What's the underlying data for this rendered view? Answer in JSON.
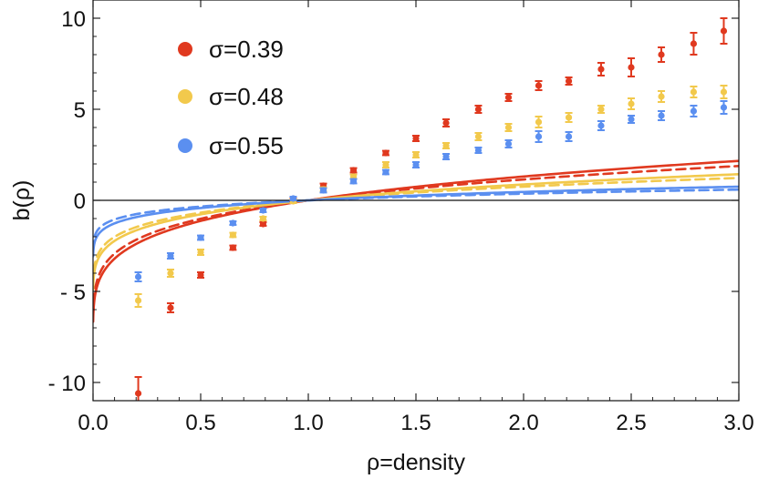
{
  "chart_data": {
    "type": "line",
    "title": "",
    "xlabel": "ρ=density",
    "ylabel": "b(ρ)",
    "xlim": [
      0.0,
      3.0
    ],
    "ylim": [
      -11,
      11
    ],
    "xticks": [
      0.0,
      0.5,
      1.0,
      1.5,
      2.0,
      2.5,
      3.0
    ],
    "xtick_labels": [
      "0.0",
      "0.5",
      "1.0",
      "1.5",
      "2.0",
      "2.5",
      "3.0"
    ],
    "yticks": [
      -10,
      -5,
      0,
      5,
      10
    ],
    "ytick_labels": [
      "- 10",
      "- 5",
      "0",
      "5",
      "10"
    ],
    "legend_position": "top-left",
    "series": [
      {
        "name": "σ=0.39",
        "color": "#e0391f",
        "points": [
          {
            "x": 0.21,
            "y": -10.6,
            "err": 0.9
          },
          {
            "x": 0.36,
            "y": -5.9,
            "err": 0.25
          },
          {
            "x": 0.5,
            "y": -4.1,
            "err": 0.15
          },
          {
            "x": 0.65,
            "y": -2.6,
            "err": 0.12
          },
          {
            "x": 0.79,
            "y": -1.3,
            "err": 0.1
          },
          {
            "x": 0.93,
            "y": 0.0,
            "err": 0.1
          },
          {
            "x": 1.07,
            "y": 0.8,
            "err": 0.12
          },
          {
            "x": 1.21,
            "y": 1.65,
            "err": 0.12
          },
          {
            "x": 1.36,
            "y": 2.6,
            "err": 0.12
          },
          {
            "x": 1.5,
            "y": 3.4,
            "err": 0.15
          },
          {
            "x": 1.64,
            "y": 4.25,
            "err": 0.2
          },
          {
            "x": 1.79,
            "y": 5.0,
            "err": 0.2
          },
          {
            "x": 1.93,
            "y": 5.65,
            "err": 0.2
          },
          {
            "x": 2.07,
            "y": 6.3,
            "err": 0.25
          },
          {
            "x": 2.21,
            "y": 6.55,
            "err": 0.2
          },
          {
            "x": 2.36,
            "y": 7.2,
            "err": 0.35
          },
          {
            "x": 2.5,
            "y": 7.3,
            "err": 0.5
          },
          {
            "x": 2.64,
            "y": 8.0,
            "err": 0.4
          },
          {
            "x": 2.79,
            "y": 8.6,
            "err": 0.6
          },
          {
            "x": 2.93,
            "y": 9.3,
            "err": 0.7
          }
        ],
        "solid_fit": {
          "a": 8.35,
          "b": -8.35,
          "p": 0.21
        },
        "dashed_fit": {
          "a": 8.62,
          "b": -8.62,
          "p": 0.18
        }
      },
      {
        "name": "σ=0.48",
        "color": "#f2c94c",
        "points": [
          {
            "x": 0.21,
            "y": -5.5,
            "err": 0.35
          },
          {
            "x": 0.36,
            "y": -4.0,
            "err": 0.2
          },
          {
            "x": 0.5,
            "y": -2.85,
            "err": 0.15
          },
          {
            "x": 0.65,
            "y": -1.9,
            "err": 0.12
          },
          {
            "x": 0.79,
            "y": -1.0,
            "err": 0.1
          },
          {
            "x": 0.93,
            "y": -0.05,
            "err": 0.1
          },
          {
            "x": 1.07,
            "y": 0.6,
            "err": 0.12
          },
          {
            "x": 1.21,
            "y": 1.3,
            "err": 0.12
          },
          {
            "x": 1.36,
            "y": 1.95,
            "err": 0.15
          },
          {
            "x": 1.5,
            "y": 2.5,
            "err": 0.15
          },
          {
            "x": 1.64,
            "y": 3.0,
            "err": 0.15
          },
          {
            "x": 1.79,
            "y": 3.5,
            "err": 0.2
          },
          {
            "x": 1.93,
            "y": 4.0,
            "err": 0.2
          },
          {
            "x": 2.07,
            "y": 4.3,
            "err": 0.3
          },
          {
            "x": 2.21,
            "y": 4.55,
            "err": 0.25
          },
          {
            "x": 2.36,
            "y": 5.0,
            "err": 0.2
          },
          {
            "x": 2.5,
            "y": 5.3,
            "err": 0.3
          },
          {
            "x": 2.64,
            "y": 5.7,
            "err": 0.3
          },
          {
            "x": 2.79,
            "y": 5.95,
            "err": 0.3
          },
          {
            "x": 2.93,
            "y": 5.95,
            "err": 0.35
          }
        ],
        "solid_fit": {
          "a": 6.56,
          "b": -6.56,
          "p": 0.18
        },
        "dashed_fit": {
          "a": 6.86,
          "b": -6.86,
          "p": 0.15
        }
      },
      {
        "name": "σ=0.55",
        "color": "#5b8ff0",
        "points": [
          {
            "x": 0.21,
            "y": -4.2,
            "err": 0.25
          },
          {
            "x": 0.36,
            "y": -3.05,
            "err": 0.15
          },
          {
            "x": 0.5,
            "y": -2.05,
            "err": 0.12
          },
          {
            "x": 0.65,
            "y": -1.25,
            "err": 0.1
          },
          {
            "x": 0.79,
            "y": -0.55,
            "err": 0.1
          },
          {
            "x": 0.93,
            "y": 0.1,
            "err": 0.1
          },
          {
            "x": 1.07,
            "y": 0.55,
            "err": 0.12
          },
          {
            "x": 1.21,
            "y": 1.05,
            "err": 0.12
          },
          {
            "x": 1.36,
            "y": 1.55,
            "err": 0.12
          },
          {
            "x": 1.5,
            "y": 1.95,
            "err": 0.15
          },
          {
            "x": 1.64,
            "y": 2.4,
            "err": 0.15
          },
          {
            "x": 1.79,
            "y": 2.75,
            "err": 0.15
          },
          {
            "x": 1.93,
            "y": 3.1,
            "err": 0.2
          },
          {
            "x": 2.07,
            "y": 3.5,
            "err": 0.3
          },
          {
            "x": 2.21,
            "y": 3.5,
            "err": 0.25
          },
          {
            "x": 2.36,
            "y": 4.1,
            "err": 0.25
          },
          {
            "x": 2.5,
            "y": 4.45,
            "err": 0.2
          },
          {
            "x": 2.64,
            "y": 4.65,
            "err": 0.25
          },
          {
            "x": 2.79,
            "y": 4.9,
            "err": 0.3
          },
          {
            "x": 2.93,
            "y": 5.1,
            "err": 0.35
          }
        ],
        "solid_fit": {
          "a": 4.89,
          "b": -4.89,
          "p": 0.13
        },
        "dashed_fit": {
          "a": 5.3,
          "b": -5.3,
          "p": 0.096
        }
      }
    ]
  }
}
